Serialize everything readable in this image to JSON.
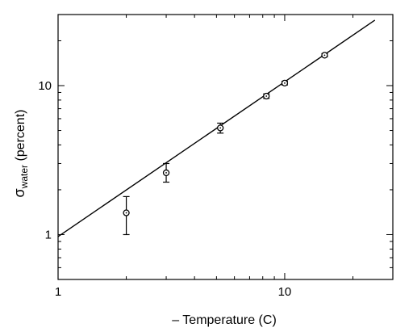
{
  "chart_data": {
    "type": "scatter",
    "title": "",
    "xlabel": "– Temperature (C)",
    "ylabel": {
      "main": "σ",
      "sub": "water",
      "tail": " (percent)"
    },
    "x_scale": "log",
    "y_scale": "log",
    "xlim": [
      1,
      30
    ],
    "ylim": [
      0.5,
      30
    ],
    "x_ticks": [
      {
        "value": 1,
        "label": "1"
      },
      {
        "value": 10,
        "label": "10"
      }
    ],
    "y_ticks": [
      {
        "value": 1,
        "label": "1"
      },
      {
        "value": 10,
        "label": "10"
      }
    ],
    "grid": false,
    "series": [
      {
        "points": [
          {
            "x": 2.0,
            "y": 1.4,
            "err_low": 1.0,
            "err_high": 1.8
          },
          {
            "x": 3.0,
            "y": 2.6,
            "err_low": 2.25,
            "err_high": 3.0
          },
          {
            "x": 5.2,
            "y": 5.2,
            "err_low": 4.8,
            "err_high": 5.6
          },
          {
            "x": 8.3,
            "y": 8.5,
            "err_low": 8.2,
            "err_high": 8.8
          },
          {
            "x": 10.0,
            "y": 10.4,
            "err_low": 10.1,
            "err_high": 10.7
          },
          {
            "x": 15.0,
            "y": 16.0,
            "err_low": 15.6,
            "err_high": 16.4
          }
        ]
      }
    ],
    "fit_line": {
      "x": [
        1,
        25
      ],
      "y": [
        0.97,
        27.5
      ]
    },
    "colors": {
      "marks": "#000000",
      "background": "#ffffff"
    }
  }
}
